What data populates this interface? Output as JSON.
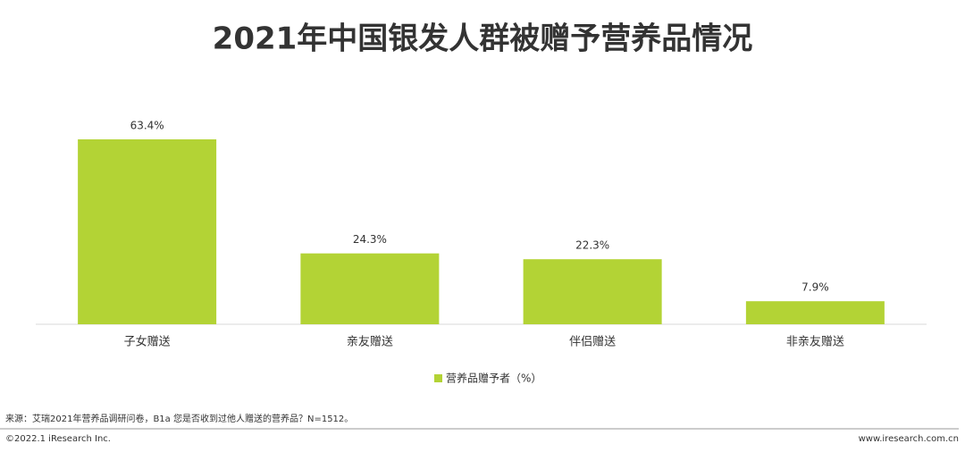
{
  "chart_data": {
    "type": "bar",
    "title": "2021年中国银发人群被赠予营养品情况",
    "categories": [
      "子女赠送",
      "亲友赠送",
      "伴侣赠送",
      "非亲友赠送"
    ],
    "series": [
      {
        "name": "营养品赠予者（%）",
        "color": "#b3d335",
        "values": [
          63.4,
          24.3,
          22.3,
          7.9
        ],
        "value_labels": [
          "63.4%",
          "24.3%",
          "22.3%",
          "7.9%"
        ]
      }
    ]
  },
  "footer": {
    "source": "来源：艾瑞2021年营养品调研问卷，B1a 您是否收到过他人赠送的营养品？N=1512。",
    "copyright": "©2022.1 iResearch Inc.",
    "website": "www.iresearch.com.cn"
  }
}
